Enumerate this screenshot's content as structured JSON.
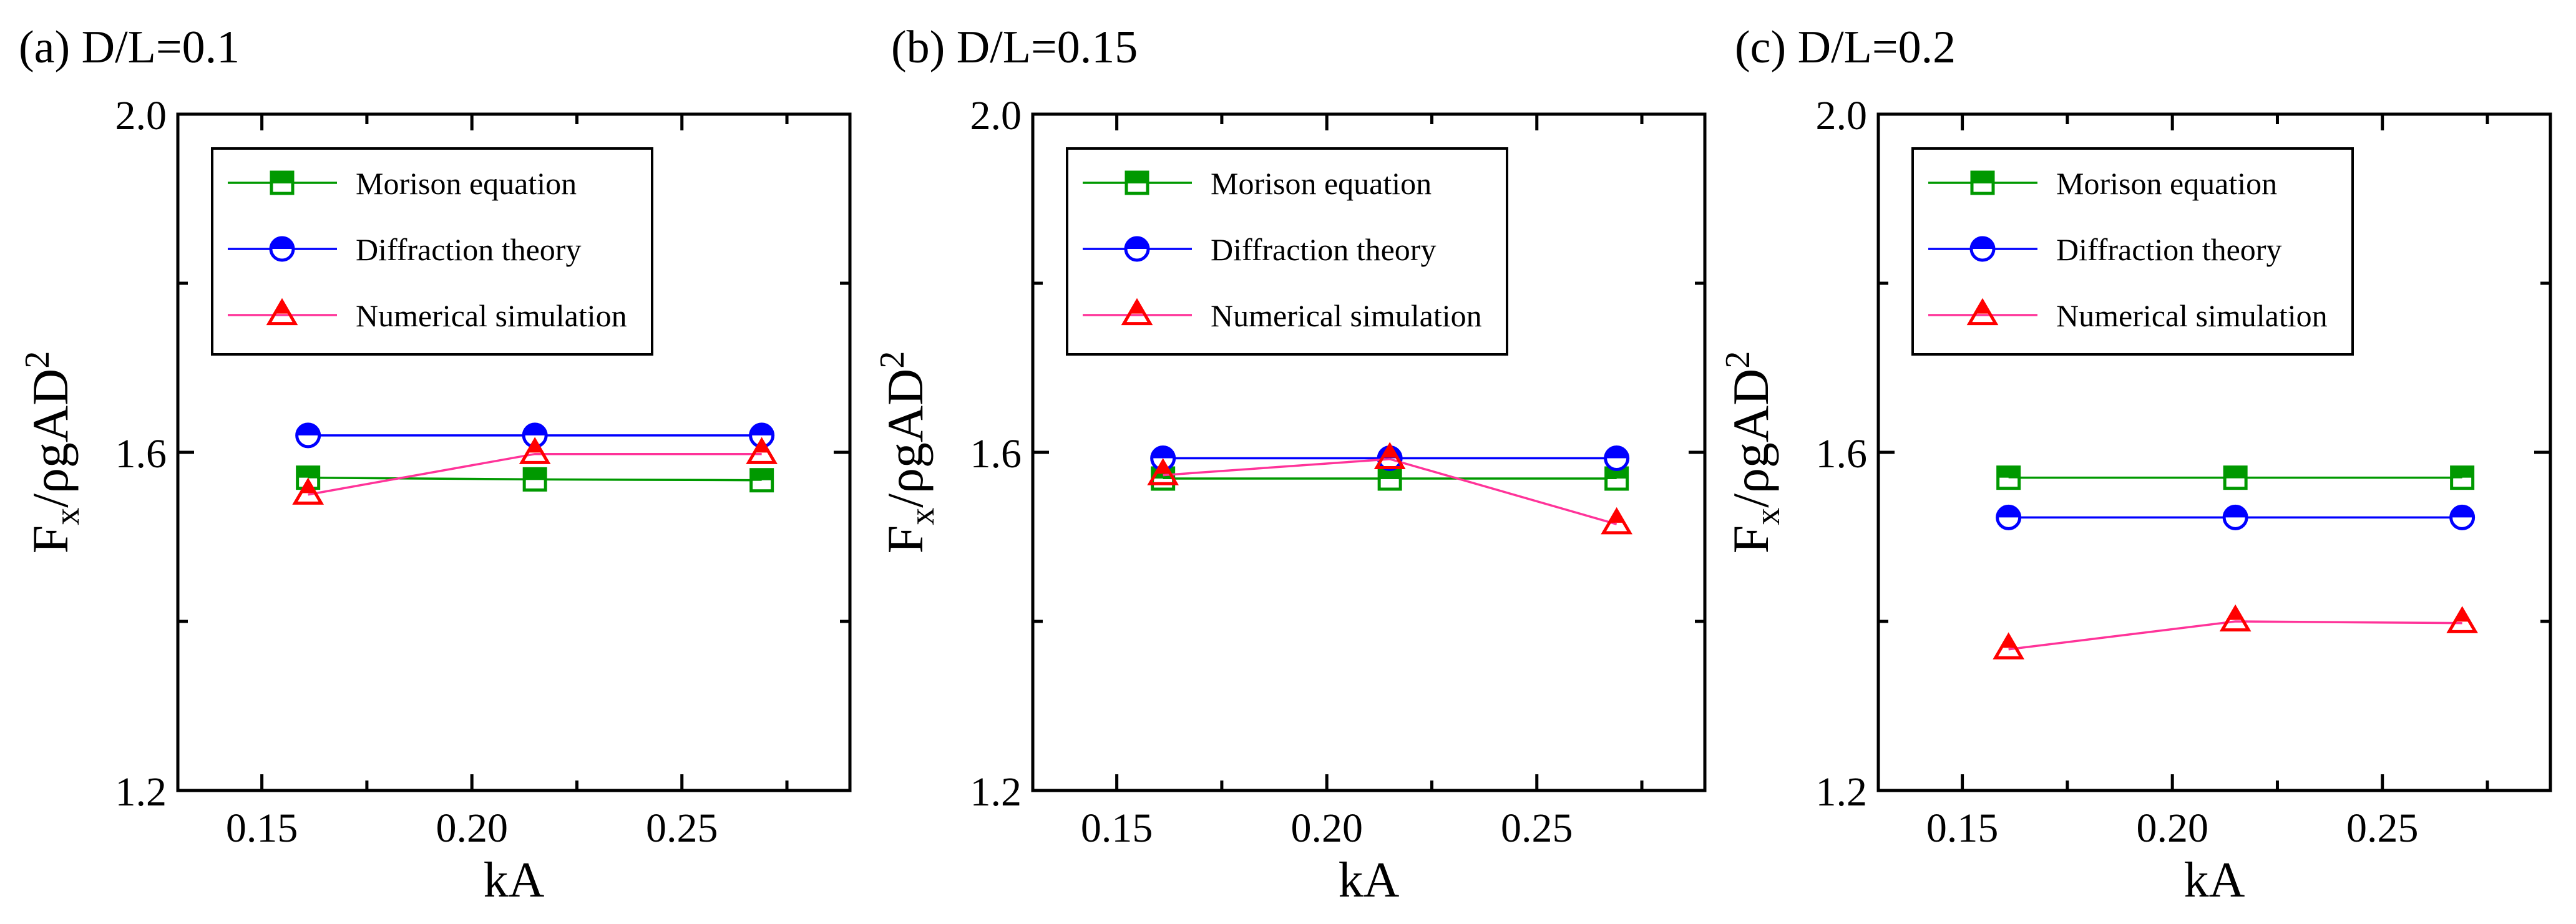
{
  "chart_data": [
    {
      "type": "line",
      "panel_label": "(a) D/L=0.1",
      "xlabel": "kA",
      "ylabel": "Fx/ρgAD2",
      "xlim": [
        0.13,
        0.29
      ],
      "ylim": [
        1.2,
        2.0
      ],
      "xticks": [
        0.15,
        0.2,
        0.25
      ],
      "xtick_labels": [
        "0.15",
        "0.20",
        "0.25"
      ],
      "yticks": [
        1.2,
        1.6,
        2.0
      ],
      "ytick_labels": [
        "1.2",
        "1.6",
        "2.0"
      ],
      "x": [
        0.161,
        0.215,
        0.269
      ],
      "legend_position": "top-left",
      "series": [
        {
          "name": "Morison equation",
          "marker": "square-half",
          "color": "#009900",
          "values": [
            1.57,
            1.568,
            1.567
          ]
        },
        {
          "name": "Diffraction theory",
          "marker": "circle-half",
          "color": "#0000ff",
          "values": [
            1.62,
            1.62,
            1.62
          ]
        },
        {
          "name": "Numerical simulation",
          "marker": "triangle-half",
          "color": "#ff0000",
          "line_color": "#ff3399",
          "values": [
            1.55,
            1.598,
            1.598
          ]
        }
      ]
    },
    {
      "type": "line",
      "panel_label": "(b) D/L=0.15",
      "xlabel": "kA",
      "ylabel": "Fx/ρgAD2",
      "xlim": [
        0.13,
        0.29
      ],
      "ylim": [
        1.2,
        2.0
      ],
      "xticks": [
        0.15,
        0.2,
        0.25
      ],
      "xtick_labels": [
        "0.15",
        "0.20",
        "0.25"
      ],
      "yticks": [
        1.2,
        1.6,
        2.0
      ],
      "ytick_labels": [
        "1.2",
        "1.6",
        "2.0"
      ],
      "x": [
        0.161,
        0.215,
        0.269
      ],
      "legend_position": "top-left",
      "series": [
        {
          "name": "Morison equation",
          "marker": "square-half",
          "color": "#009900",
          "values": [
            1.569,
            1.569,
            1.569
          ]
        },
        {
          "name": "Diffraction theory",
          "marker": "circle-half",
          "color": "#0000ff",
          "values": [
            1.593,
            1.593,
            1.593
          ]
        },
        {
          "name": "Numerical simulation",
          "marker": "triangle-half",
          "color": "#ff0000",
          "line_color": "#ff3399",
          "values": [
            1.573,
            1.592,
            1.515
          ]
        }
      ]
    },
    {
      "type": "line",
      "panel_label": "(c) D/L=0.2",
      "xlabel": "kA",
      "ylabel": "Fx/ρgAD2",
      "xlim": [
        0.13,
        0.29
      ],
      "ylim": [
        1.2,
        2.0
      ],
      "xticks": [
        0.15,
        0.2,
        0.25
      ],
      "xtick_labels": [
        "0.15",
        "0.20",
        "0.25"
      ],
      "yticks": [
        1.2,
        1.6,
        2.0
      ],
      "ytick_labels": [
        "1.2",
        "1.6",
        "2.0"
      ],
      "x": [
        0.161,
        0.215,
        0.269
      ],
      "legend_position": "top-left",
      "series": [
        {
          "name": "Morison equation",
          "marker": "square-half",
          "color": "#009900",
          "values": [
            1.57,
            1.57,
            1.57
          ]
        },
        {
          "name": "Diffraction theory",
          "marker": "circle-half",
          "color": "#0000ff",
          "values": [
            1.523,
            1.523,
            1.523
          ]
        },
        {
          "name": "Numerical simulation",
          "marker": "triangle-half",
          "color": "#ff0000",
          "line_color": "#ff3399",
          "values": [
            1.367,
            1.4,
            1.398
          ]
        }
      ]
    }
  ]
}
